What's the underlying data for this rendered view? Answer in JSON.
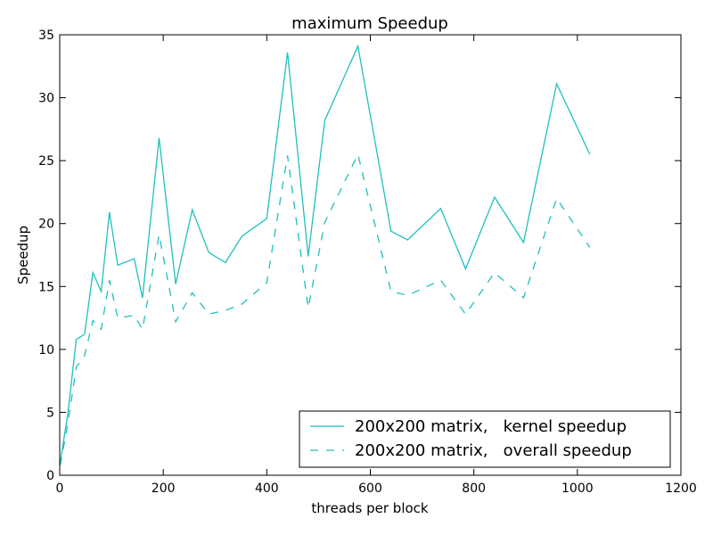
{
  "chart_data": {
    "type": "line",
    "title": "maximum Speedup",
    "xlabel": "threads per block",
    "ylabel": "Speedup",
    "xlim": [
      0,
      1200
    ],
    "ylim": [
      0,
      35
    ],
    "xticks": [
      0,
      200,
      400,
      600,
      800,
      1000,
      1200
    ],
    "yticks": [
      0,
      5,
      10,
      15,
      20,
      25,
      30,
      35
    ],
    "grid": false,
    "legend_position": "lower-right",
    "color": "#1fbfbf",
    "series": [
      {
        "name": "200x200 matrix,   kernel speedup",
        "style": "solid",
        "x": [
          1,
          16,
          32,
          48,
          64,
          80,
          96,
          112,
          144,
          160,
          192,
          224,
          256,
          288,
          320,
          352,
          400,
          440,
          480,
          512,
          576,
          640,
          672,
          736,
          784,
          840,
          896,
          960,
          1024
        ],
        "y": [
          1.0,
          5.0,
          10.8,
          11.2,
          16.1,
          14.6,
          20.9,
          16.7,
          17.2,
          14.1,
          26.8,
          15.2,
          21.1,
          17.7,
          16.9,
          19.0,
          20.4,
          33.6,
          17.4,
          28.2,
          34.1,
          19.4,
          18.7,
          21.2,
          16.4,
          22.1,
          18.5,
          31.1,
          25.5
        ]
      },
      {
        "name": "200x200 matrix,   overall speedup",
        "style": "dashed",
        "x": [
          1,
          16,
          32,
          48,
          64,
          80,
          96,
          112,
          144,
          160,
          192,
          224,
          256,
          288,
          320,
          352,
          400,
          440,
          480,
          512,
          576,
          640,
          672,
          736,
          784,
          840,
          896,
          960,
          1024
        ],
        "y": [
          0.8,
          4.2,
          8.6,
          9.5,
          12.3,
          11.6,
          15.5,
          12.5,
          12.7,
          11.6,
          19.1,
          12.2,
          14.5,
          12.8,
          13.1,
          13.6,
          15.3,
          25.4,
          13.3,
          20.1,
          25.5,
          14.6,
          14.3,
          15.5,
          12.8,
          16.1,
          14.1,
          22.0,
          18.1
        ]
      }
    ]
  }
}
